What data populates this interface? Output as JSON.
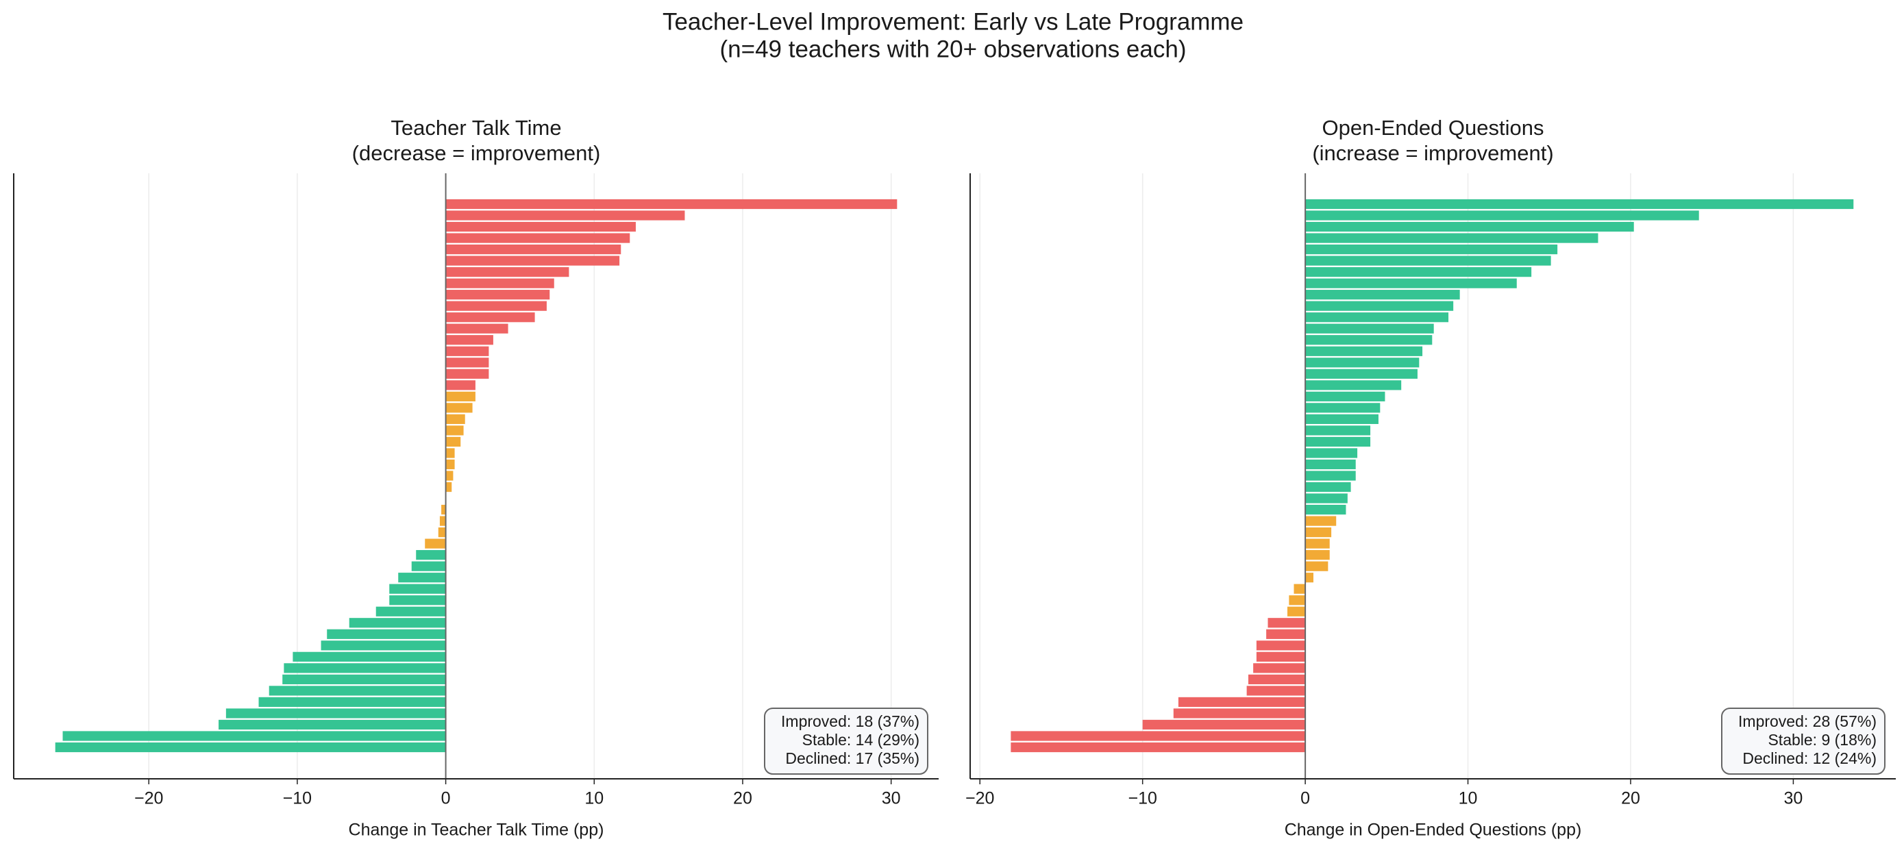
{
  "title": "Teacher-Level Improvement: Early vs Late Programme",
  "subtitle": "(n=49 teachers with 20+ observations each)",
  "chart_data": [
    {
      "type": "barh",
      "title": "Teacher Talk Time",
      "subtitle": "(decrease = improvement)",
      "xlabel": "Change in Teacher Talk Time (pp)",
      "values": [
        30.4,
        16.1,
        12.8,
        12.4,
        11.8,
        11.7,
        8.3,
        7.3,
        7.0,
        6.8,
        6.0,
        4.2,
        3.2,
        2.9,
        2.9,
        2.9,
        2.0,
        2.0,
        1.8,
        1.3,
        1.2,
        1.0,
        0.6,
        0.6,
        0.5,
        0.4,
        0,
        -0.3,
        -0.4,
        -0.5,
        -1.4,
        -2.0,
        -2.3,
        -3.2,
        -3.8,
        -3.8,
        -4.7,
        -6.5,
        -8.0,
        -8.4,
        -10.3,
        -10.9,
        -11.0,
        -11.9,
        -12.6,
        -14.8,
        -15.3,
        -25.8,
        -26.3
      ],
      "colors": [
        "#ee6363",
        "#ee6363",
        "#ee6363",
        "#ee6363",
        "#ee6363",
        "#ee6363",
        "#ee6363",
        "#ee6363",
        "#ee6363",
        "#ee6363",
        "#ee6363",
        "#ee6363",
        "#ee6363",
        "#ee6363",
        "#ee6363",
        "#ee6363",
        "#ee6363",
        "#f2aa35",
        "#f2aa35",
        "#f2aa35",
        "#f2aa35",
        "#f2aa35",
        "#f2aa35",
        "#f2aa35",
        "#f2aa35",
        "#f2aa35",
        "#f2aa35",
        "#f2aa35",
        "#f2aa35",
        "#f2aa35",
        "#f2aa35",
        "#35c493",
        "#35c493",
        "#35c493",
        "#35c493",
        "#35c493",
        "#35c493",
        "#35c493",
        "#35c493",
        "#35c493",
        "#35c493",
        "#35c493",
        "#35c493",
        "#35c493",
        "#35c493",
        "#35c493",
        "#35c493",
        "#35c493",
        "#35c493"
      ],
      "xlim": [
        -29.1,
        33.2
      ],
      "xticks": [
        {
          "value": -20,
          "label": "−20"
        },
        {
          "value": -10,
          "label": "−10"
        },
        0,
        10,
        20,
        30
      ],
      "grid": true,
      "annotations": [
        "Improved: 18 (37%)",
        "Stable: 14 (29%)",
        "Declined: 17 (35%)"
      ]
    },
    {
      "type": "barh",
      "title": "Open-Ended Questions",
      "subtitle": "(increase = improvement)",
      "xlabel": "Change in Open-Ended Questions (pp)",
      "values": [
        33.7,
        24.2,
        20.2,
        18.0,
        15.5,
        15.1,
        13.9,
        13.0,
        9.5,
        9.1,
        8.8,
        7.9,
        7.8,
        7.2,
        7.0,
        6.9,
        5.9,
        4.9,
        4.6,
        4.5,
        4.0,
        4.0,
        3.2,
        3.1,
        3.1,
        2.8,
        2.6,
        2.5,
        1.9,
        1.6,
        1.5,
        1.5,
        1.4,
        0.5,
        -0.7,
        -1.0,
        -1.1,
        -2.3,
        -2.4,
        -3.0,
        -3.0,
        -3.2,
        -3.5,
        -3.6,
        -7.8,
        -8.1,
        -10.0,
        -18.1,
        -18.1
      ],
      "colors": [
        "#35c493",
        "#35c493",
        "#35c493",
        "#35c493",
        "#35c493",
        "#35c493",
        "#35c493",
        "#35c493",
        "#35c493",
        "#35c493",
        "#35c493",
        "#35c493",
        "#35c493",
        "#35c493",
        "#35c493",
        "#35c493",
        "#35c493",
        "#35c493",
        "#35c493",
        "#35c493",
        "#35c493",
        "#35c493",
        "#35c493",
        "#35c493",
        "#35c493",
        "#35c493",
        "#35c493",
        "#35c493",
        "#f2aa35",
        "#f2aa35",
        "#f2aa35",
        "#f2aa35",
        "#f2aa35",
        "#f2aa35",
        "#f2aa35",
        "#f2aa35",
        "#f2aa35",
        "#ee6363",
        "#ee6363",
        "#ee6363",
        "#ee6363",
        "#ee6363",
        "#ee6363",
        "#ee6363",
        "#ee6363",
        "#ee6363",
        "#ee6363",
        "#ee6363",
        "#ee6363"
      ],
      "xlim": [
        -20.6,
        36.3
      ],
      "xticks": [
        {
          "value": -20,
          "label": "−20"
        },
        {
          "value": -10,
          "label": "−10"
        },
        0,
        10,
        20,
        30
      ],
      "grid": true,
      "annotations": [
        "Improved: 28 (57%)",
        "Stable: 9 (18%)",
        "Declined: 12 (24%)"
      ]
    }
  ]
}
